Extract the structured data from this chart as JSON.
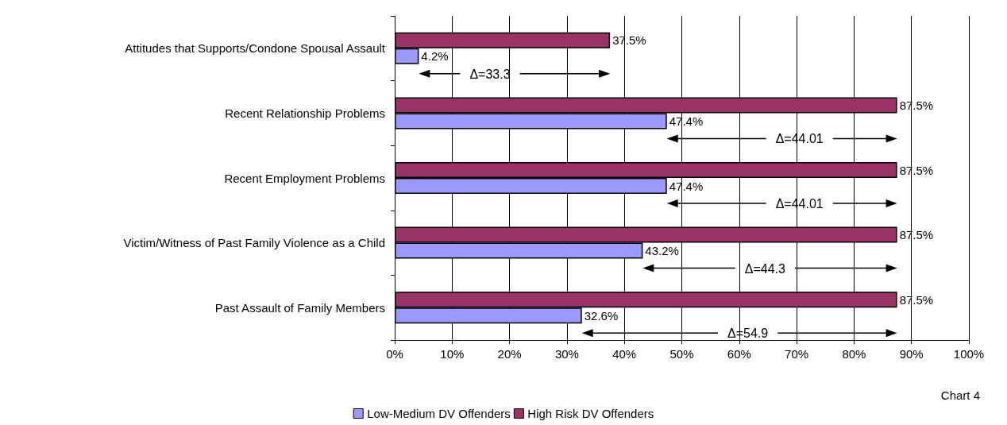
{
  "chart_data": {
    "type": "bar",
    "orientation": "horizontal",
    "categories": [
      "Attitudes that Supports/Condone Spousal Assault",
      "Recent Relationship Problems",
      "Recent Employment Problems",
      "Victim/Witness of Past Family Violence as a Child",
      "Past Assault of Family Members"
    ],
    "series": [
      {
        "name": "Low-Medium DV Offenders",
        "color": "#9999ff",
        "values": [
          4.2,
          47.4,
          47.4,
          43.2,
          32.6
        ]
      },
      {
        "name": "High Risk DV Offenders",
        "color": "#993366",
        "values": [
          37.5,
          87.5,
          87.5,
          87.5,
          87.5
        ]
      }
    ],
    "xlim": [
      0,
      100
    ],
    "xticks": [
      {
        "value": 0,
        "label": "0%"
      },
      {
        "value": 10,
        "label": "10%"
      },
      {
        "value": 20,
        "label": "20%"
      },
      {
        "value": 30,
        "label": "30%"
      },
      {
        "value": 40,
        "label": "40%"
      },
      {
        "value": 50,
        "label": "50%"
      },
      {
        "value": 60,
        "label": "60%"
      },
      {
        "value": 70,
        "label": "70%"
      },
      {
        "value": 80,
        "label": "80%"
      },
      {
        "value": 90,
        "label": "90%"
      },
      {
        "value": 100,
        "label": "100%"
      }
    ],
    "value_labels": [
      [
        "4.2%",
        "47.4%",
        "47.4%",
        "43.2%",
        "32.6%"
      ],
      [
        "37.5%",
        "87.5%",
        "87.5%",
        "87.5%",
        "87.5%"
      ]
    ],
    "grid": "x",
    "legend": "bottom",
    "annotations": [
      {
        "text": "Δ=33.3",
        "x": 16.6,
        "y": "Attitudes that Supports/Condone Spousal Assault"
      },
      {
        "text": "Δ=44.01",
        "x": 70.5,
        "y": "Recent Relationship Problems"
      },
      {
        "text": "Δ=44.01",
        "x": 70.5,
        "y": "Recent Employment Problems"
      },
      {
        "text": "Δ=44.3",
        "x": 64.5,
        "y": "Victim/Witness of Past Family Violence as a Child"
      },
      {
        "text": "Δ=54.9",
        "x": 61.5,
        "y": "Past Assault of Family Members"
      },
      "Chart 4"
    ]
  }
}
